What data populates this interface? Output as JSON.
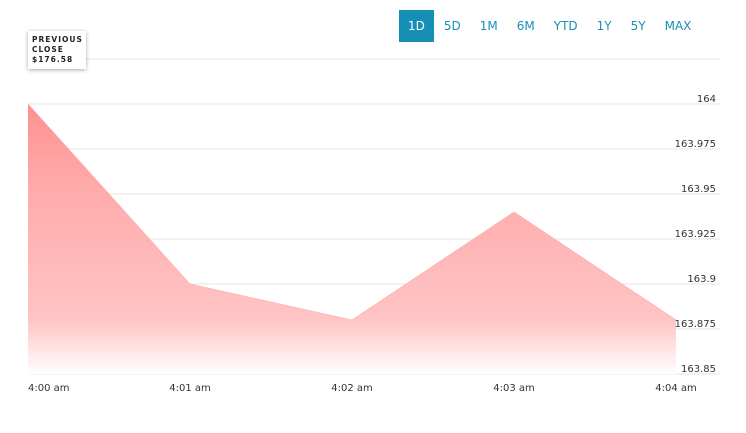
{
  "range_buttons": [
    "1D",
    "5D",
    "1M",
    "6M",
    "YTD",
    "1Y",
    "5Y",
    "MAX"
  ],
  "previous_close": {
    "label": "PREVIOUS CLOSE",
    "value": "$176.58"
  },
  "chart_data": {
    "type": "area",
    "categories": [
      "4:00 am",
      "4:01 am",
      "4:02 am",
      "4:03 am",
      "4:04 am"
    ],
    "values": [
      164,
      163.9,
      163.88,
      163.94,
      163.88
    ],
    "color": "#ff9494",
    "ylim": [
      163.85,
      164.025
    ],
    "yticks": [
      163.85,
      163.875,
      163.9,
      163.925,
      163.95,
      163.975,
      164
    ],
    "grid": true
  }
}
